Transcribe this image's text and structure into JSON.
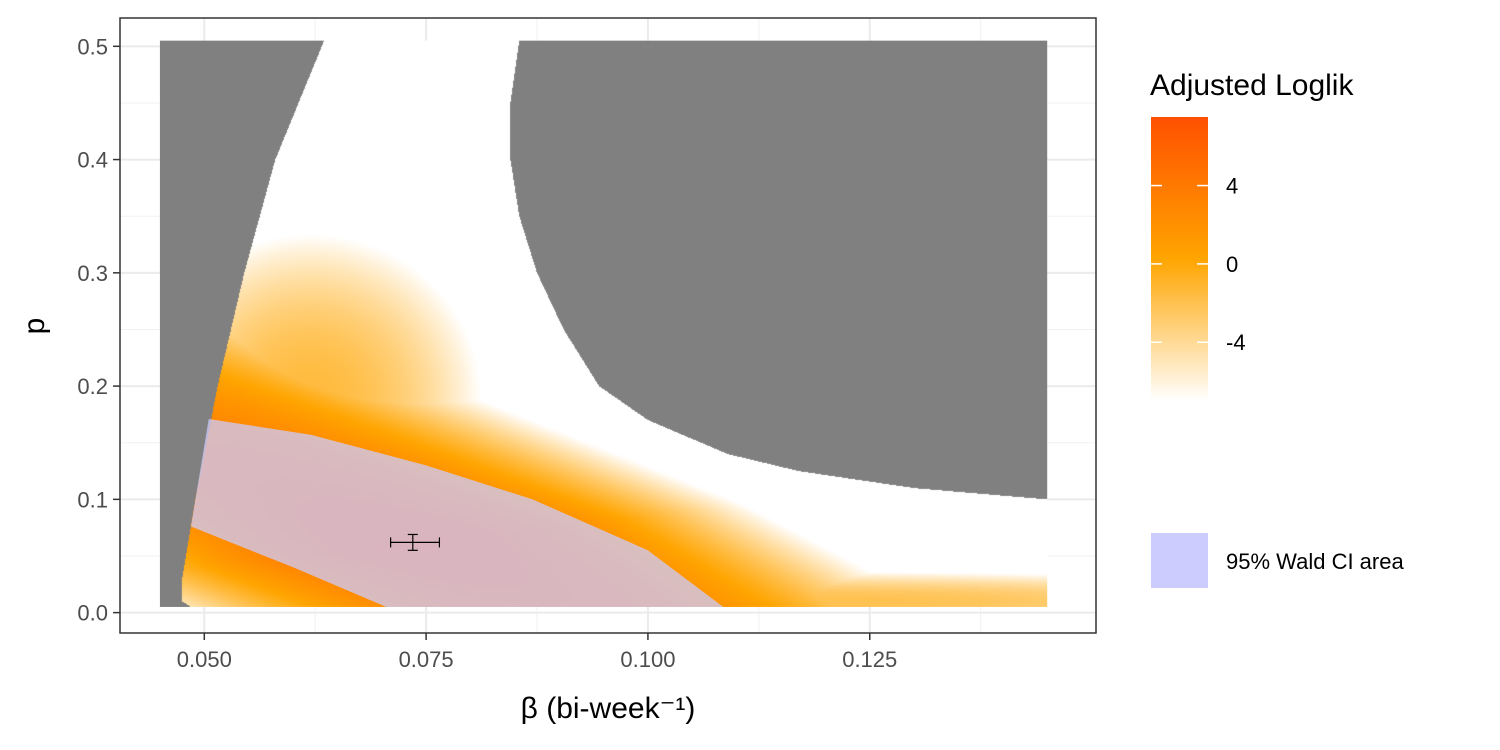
{
  "chart_data": {
    "type": "heatmap",
    "xlabel": "β (bi-week⁻¹)",
    "ylabel": "p",
    "xlim": [
      0.0405,
      0.1505
    ],
    "ylim": [
      -0.018,
      0.525
    ],
    "x_ticks": [
      0.05,
      0.075,
      0.1,
      0.125
    ],
    "x_tick_labels": [
      "0.050",
      "0.075",
      "0.100",
      "0.125"
    ],
    "y_ticks": [
      0.0,
      0.1,
      0.2,
      0.3,
      0.4,
      0.5
    ],
    "y_tick_labels": [
      "0.0",
      "0.1",
      "0.2",
      "0.3",
      "0.4",
      "0.5"
    ],
    "grid": true,
    "fill_legend": {
      "title": "Adjusted Loglik",
      "breaks": [
        4,
        0,
        -4
      ],
      "break_labels": [
        "4",
        "0",
        "-4"
      ],
      "limits": [
        -7,
        7.5
      ],
      "colors": [
        "#ffffff",
        "#ffa500",
        "#ff5000"
      ],
      "na_color": "#808080"
    },
    "ci_legend": {
      "label": "95% Wald CI area",
      "color": "#ccccff"
    },
    "heatmap_extent": {
      "beta": [
        0.045,
        0.145
      ],
      "p": [
        0.005,
        0.505
      ]
    },
    "valid_region_left_boundary": [
      {
        "p": 0.005,
        "beta": 0.0485
      },
      {
        "p": 0.01,
        "beta": 0.0475
      },
      {
        "p": 0.03,
        "beta": 0.0475
      },
      {
        "p": 0.1,
        "beta": 0.049
      },
      {
        "p": 0.2,
        "beta": 0.0515
      },
      {
        "p": 0.3,
        "beta": 0.0545
      },
      {
        "p": 0.4,
        "beta": 0.058
      },
      {
        "p": 0.505,
        "beta": 0.0635
      }
    ],
    "valid_region_right_boundary": [
      {
        "p": 0.505,
        "beta": 0.0855
      },
      {
        "p": 0.45,
        "beta": 0.0845
      },
      {
        "p": 0.4,
        "beta": 0.0845
      },
      {
        "p": 0.35,
        "beta": 0.0855
      },
      {
        "p": 0.3,
        "beta": 0.0875
      },
      {
        "p": 0.25,
        "beta": 0.0905
      },
      {
        "p": 0.2,
        "beta": 0.0945
      },
      {
        "p": 0.17,
        "beta": 0.1
      },
      {
        "p": 0.14,
        "beta": 0.109
      },
      {
        "p": 0.125,
        "beta": 0.117
      },
      {
        "p": 0.11,
        "beta": 0.13
      },
      {
        "p": 0.1,
        "beta": 0.145
      }
    ],
    "loglik_peaks": [
      {
        "beta": 0.0735,
        "p": 0.062,
        "value": 5
      },
      {
        "beta": 0.062,
        "p": 0.19,
        "value": -1.5
      },
      {
        "beta": 0.12,
        "p": 0.01,
        "value": -2
      }
    ],
    "wald_ci_polygon": [
      {
        "beta": 0.0505,
        "p": 0.171
      },
      {
        "beta": 0.062,
        "p": 0.157
      },
      {
        "beta": 0.075,
        "p": 0.13
      },
      {
        "beta": 0.087,
        "p": 0.1
      },
      {
        "beta": 0.1,
        "p": 0.055
      },
      {
        "beta": 0.1085,
        "p": 0.005
      },
      {
        "beta": 0.0705,
        "p": 0.005
      },
      {
        "beta": 0.06,
        "p": 0.04
      },
      {
        "beta": 0.0485,
        "p": 0.076
      }
    ],
    "estimate": {
      "beta": 0.0735,
      "p": 0.062,
      "beta_error_bar": [
        0.071,
        0.0765
      ],
      "p_error_bar": [
        0.055,
        0.069
      ]
    }
  }
}
